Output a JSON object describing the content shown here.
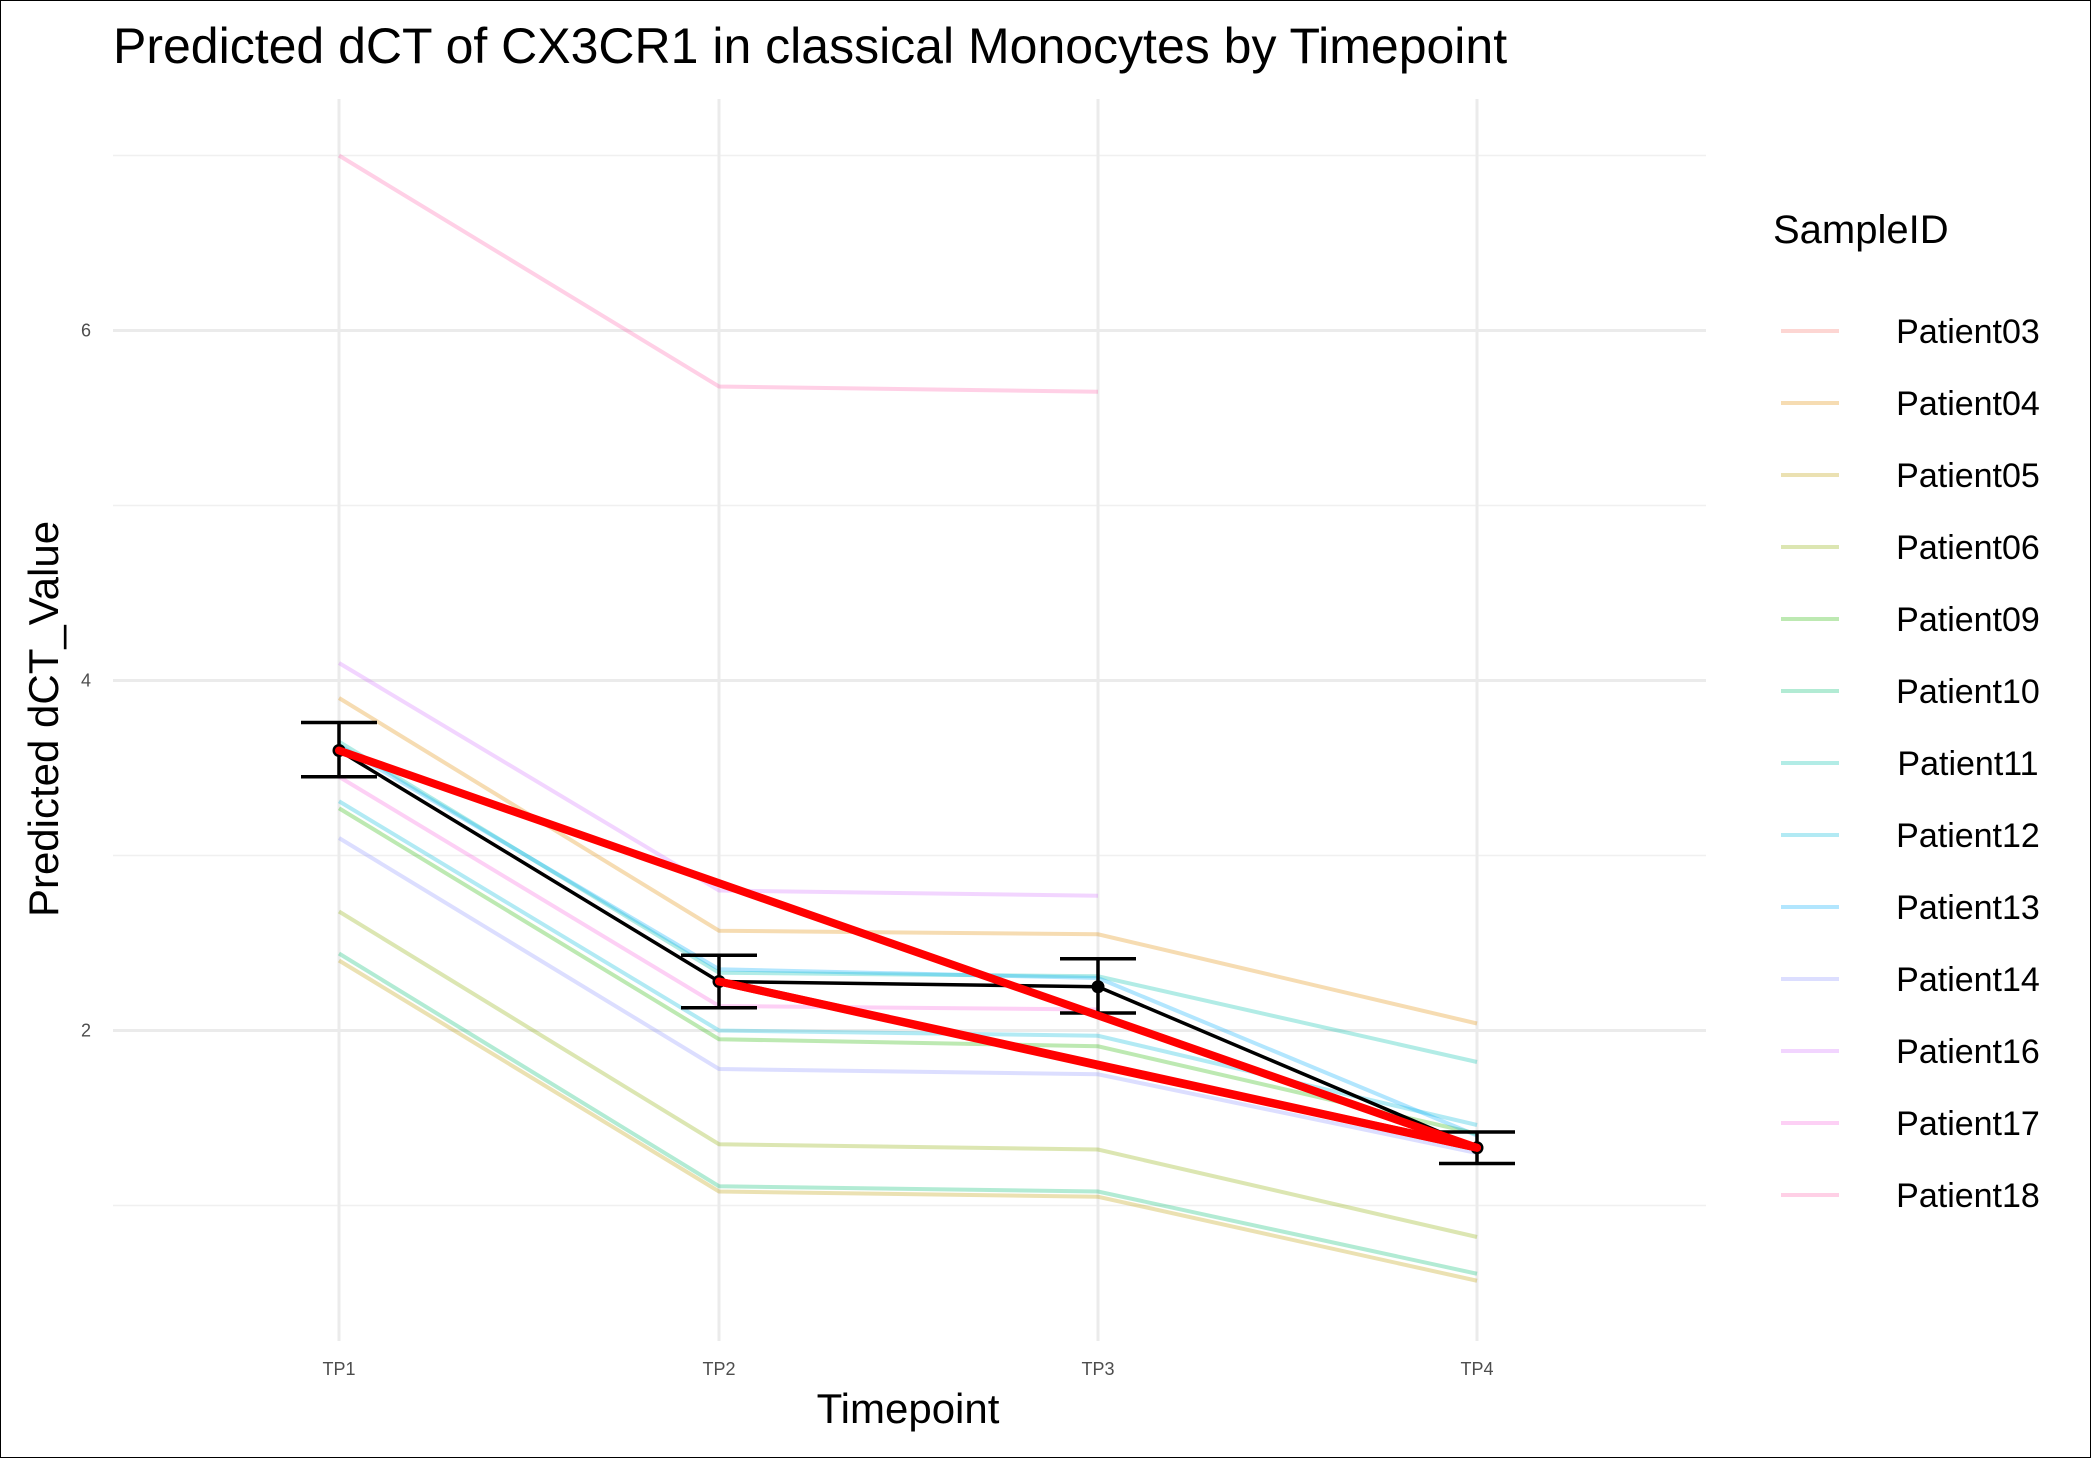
{
  "chart_data": {
    "type": "line",
    "title": "Predicted dCT of  CX3CR1 in  classical  Monocytes by Timepoint",
    "xlabel": "Timepoint",
    "ylabel": "Predicted dCT_Value",
    "categories": [
      "TP1",
      "TP2",
      "TP3",
      "TP4"
    ],
    "ylim": [
      0.35,
      7.5
    ],
    "y_ticks": [
      2,
      4,
      6
    ],
    "grid": true,
    "legend": {
      "title": "SampleID",
      "position": "right"
    },
    "series": [
      {
        "name": "Patient03",
        "color": "#F8766D",
        "values": [
          null,
          null,
          null,
          null
        ]
      },
      {
        "name": "Patient04",
        "color": "#E18A00",
        "values": [
          3.9,
          2.57,
          2.55,
          2.04
        ]
      },
      {
        "name": "Patient05",
        "color": "#BE9C00",
        "values": [
          2.4,
          1.08,
          1.05,
          0.57
        ]
      },
      {
        "name": "Patient06",
        "color": "#8CAB00",
        "values": [
          2.68,
          1.35,
          1.32,
          0.82
        ]
      },
      {
        "name": "Patient09",
        "color": "#24B700",
        "values": [
          3.27,
          1.95,
          1.91,
          1.41
        ]
      },
      {
        "name": "Patient10",
        "color": "#00BE70",
        "values": [
          2.44,
          1.11,
          1.08,
          0.61
        ]
      },
      {
        "name": "Patient11",
        "color": "#00C1AB",
        "values": [
          3.65,
          2.33,
          2.31,
          1.82
        ]
      },
      {
        "name": "Patient12",
        "color": "#00BBDA",
        "values": [
          3.31,
          2.0,
          1.97,
          1.46
        ]
      },
      {
        "name": "Patient13",
        "color": "#00ACFC",
        "values": [
          3.63,
          2.35,
          2.3,
          1.4
        ]
      },
      {
        "name": "Patient14",
        "color": "#8B93FF",
        "values": [
          3.1,
          1.78,
          1.75,
          1.3
        ]
      },
      {
        "name": "Patient16",
        "color": "#D575FE",
        "values": [
          4.1,
          2.8,
          2.77,
          null
        ]
      },
      {
        "name": "Patient17",
        "color": "#F962DD",
        "values": [
          3.45,
          2.14,
          2.12,
          null
        ]
      },
      {
        "name": "Patient18",
        "color": "#FF65AC",
        "values": [
          7.0,
          5.68,
          5.65,
          null
        ]
      }
    ],
    "mean_series": {
      "values": [
        3.6,
        2.28,
        2.25,
        1.33
      ],
      "error_low": [
        3.45,
        2.13,
        2.1,
        1.24
      ],
      "error_high": [
        3.76,
        2.43,
        2.41,
        1.42
      ],
      "color": "#000000"
    },
    "trend_lines": {
      "color": "#FF0000",
      "segments": [
        {
          "from": [
            "TP1",
            3.6
          ],
          "to": [
            "TP4",
            1.33
          ]
        },
        {
          "from": [
            "TP2",
            2.28
          ],
          "to": [
            "TP3",
            1.8
          ]
        },
        {
          "from": [
            "TP3",
            1.8
          ],
          "to": [
            "TP4",
            1.33
          ]
        },
        {
          "from": [
            "TP2",
            2.28
          ],
          "to": [
            "TP4",
            1.33
          ]
        }
      ]
    }
  }
}
